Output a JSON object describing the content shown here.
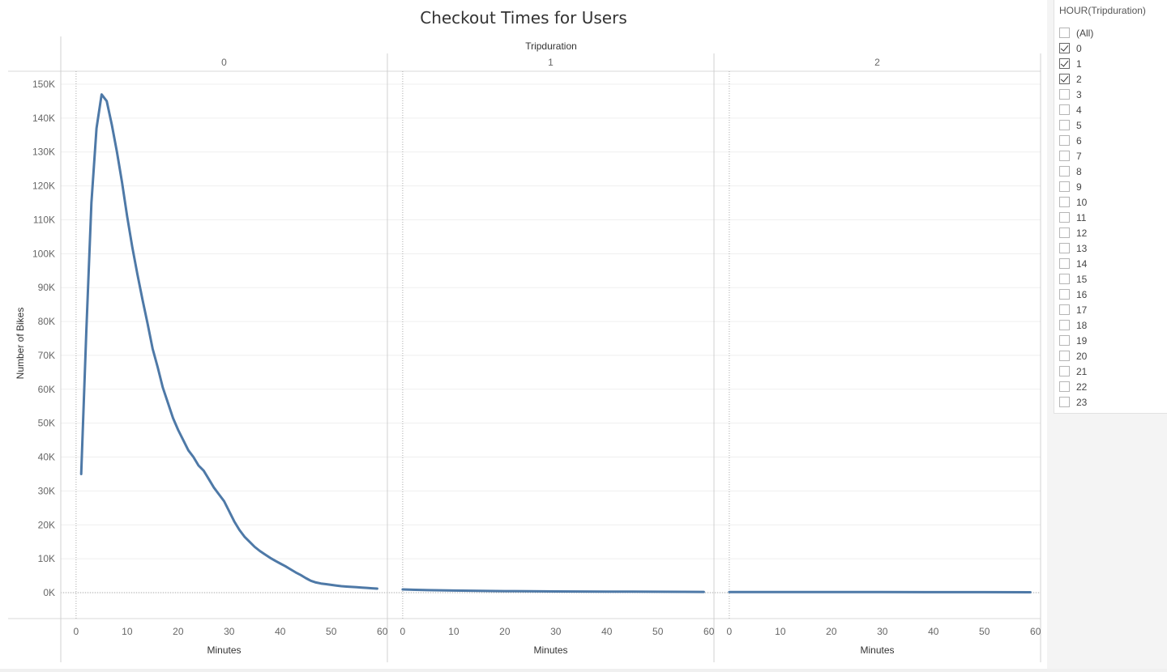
{
  "chart_data": {
    "type": "line",
    "title": "Checkout Times for Users",
    "column_header": "Tripduration",
    "ylabel": "Number of Bikes",
    "xlabel": "Minutes",
    "ylim": [
      0,
      155000
    ],
    "y_ticks": [
      0,
      10000,
      20000,
      30000,
      40000,
      50000,
      60000,
      70000,
      80000,
      90000,
      100000,
      110000,
      120000,
      130000,
      140000,
      150000
    ],
    "y_tick_labels": [
      "0K",
      "10K",
      "20K",
      "30K",
      "40K",
      "50K",
      "60K",
      "70K",
      "80K",
      "90K",
      "100K",
      "110K",
      "120K",
      "130K",
      "140K",
      "150K"
    ],
    "xlim": [
      -3,
      61
    ],
    "x_ticks": [
      0,
      10,
      20,
      30,
      40,
      50,
      60
    ],
    "x_tick_labels": [
      "0",
      "10",
      "20",
      "30",
      "40",
      "50",
      "60"
    ],
    "color": "#4e79a7",
    "panels": [
      {
        "label": "0",
        "points": [
          [
            1,
            35000
          ],
          [
            2,
            77000
          ],
          [
            3,
            115000
          ],
          [
            4,
            137000
          ],
          [
            5,
            147000
          ],
          [
            6,
            145000
          ],
          [
            7,
            138000
          ],
          [
            8,
            130000
          ],
          [
            9,
            121000
          ],
          [
            10,
            111000
          ],
          [
            11,
            102000
          ],
          [
            12,
            94000
          ],
          [
            13,
            86500
          ],
          [
            14,
            79500
          ],
          [
            15,
            72000
          ],
          [
            16,
            66500
          ],
          [
            17,
            60500
          ],
          [
            18,
            56000
          ],
          [
            19,
            51500
          ],
          [
            20,
            48000
          ],
          [
            21,
            45000
          ],
          [
            22,
            42000
          ],
          [
            23,
            40000
          ],
          [
            24,
            37500
          ],
          [
            25,
            36000
          ],
          [
            26,
            33500
          ],
          [
            27,
            31000
          ],
          [
            28,
            29000
          ],
          [
            29,
            27000
          ],
          [
            30,
            24000
          ],
          [
            31,
            21000
          ],
          [
            32,
            18500
          ],
          [
            33,
            16500
          ],
          [
            34,
            15000
          ],
          [
            35,
            13500
          ],
          [
            36,
            12300
          ],
          [
            37,
            11300
          ],
          [
            38,
            10300
          ],
          [
            39,
            9400
          ],
          [
            40,
            8600
          ],
          [
            41,
            7800
          ],
          [
            42,
            6900
          ],
          [
            43,
            6000
          ],
          [
            44,
            5200
          ],
          [
            45,
            4300
          ],
          [
            46,
            3500
          ],
          [
            47,
            3000
          ],
          [
            48,
            2700
          ],
          [
            49,
            2500
          ],
          [
            50,
            2300
          ],
          [
            51,
            2100
          ],
          [
            52,
            1900
          ],
          [
            53,
            1800
          ],
          [
            54,
            1700
          ],
          [
            55,
            1600
          ],
          [
            56,
            1500
          ],
          [
            57,
            1400
          ],
          [
            58,
            1300
          ],
          [
            59,
            1200
          ]
        ]
      },
      {
        "label": "1",
        "points": [
          [
            0,
            950
          ],
          [
            5,
            750
          ],
          [
            10,
            620
          ],
          [
            15,
            520
          ],
          [
            20,
            450
          ],
          [
            25,
            400
          ],
          [
            30,
            360
          ],
          [
            35,
            330
          ],
          [
            40,
            300
          ],
          [
            45,
            280
          ],
          [
            50,
            260
          ],
          [
            55,
            240
          ],
          [
            59,
            220
          ]
        ]
      },
      {
        "label": "2",
        "points": [
          [
            0,
            200
          ],
          [
            10,
            180
          ],
          [
            20,
            170
          ],
          [
            30,
            160
          ],
          [
            40,
            150
          ],
          [
            50,
            140
          ],
          [
            59,
            130
          ]
        ]
      }
    ]
  },
  "filter": {
    "title": "HOUR(Tripduration)",
    "items": [
      {
        "label": "(All)",
        "checked": false
      },
      {
        "label": "0",
        "checked": true
      },
      {
        "label": "1",
        "checked": true
      },
      {
        "label": "2",
        "checked": true
      },
      {
        "label": "3",
        "checked": false
      },
      {
        "label": "4",
        "checked": false
      },
      {
        "label": "5",
        "checked": false
      },
      {
        "label": "6",
        "checked": false
      },
      {
        "label": "7",
        "checked": false
      },
      {
        "label": "8",
        "checked": false
      },
      {
        "label": "9",
        "checked": false
      },
      {
        "label": "10",
        "checked": false
      },
      {
        "label": "11",
        "checked": false
      },
      {
        "label": "12",
        "checked": false
      },
      {
        "label": "13",
        "checked": false
      },
      {
        "label": "14",
        "checked": false
      },
      {
        "label": "15",
        "checked": false
      },
      {
        "label": "16",
        "checked": false
      },
      {
        "label": "17",
        "checked": false
      },
      {
        "label": "18",
        "checked": false
      },
      {
        "label": "19",
        "checked": false
      },
      {
        "label": "20",
        "checked": false
      },
      {
        "label": "21",
        "checked": false
      },
      {
        "label": "22",
        "checked": false
      },
      {
        "label": "23",
        "checked": false
      }
    ]
  }
}
